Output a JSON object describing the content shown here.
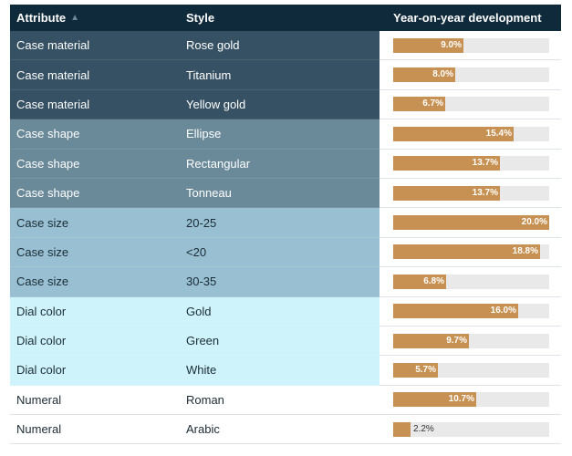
{
  "header": {
    "attribute_label": "Attribute",
    "sort_indicator": "▲",
    "style_label": "Style",
    "yoy_label": "Year-on-year development"
  },
  "colors": {
    "header_bg": "#0f2a3b",
    "bar_fill": "#c69152",
    "bar_track": "#e9e9e9",
    "group_case_material": "#355163",
    "group_case_shape": "#6a8a9a",
    "group_case_size": "#98c0d2",
    "group_dial_color": "#cff3fb",
    "group_numeral": "#ffffff"
  },
  "rows": [
    {
      "attribute": "Case material",
      "style": "Rose gold",
      "value": 9.0,
      "label": "9.0%",
      "group": "g-material"
    },
    {
      "attribute": "Case material",
      "style": "Titanium",
      "value": 8.0,
      "label": "8.0%",
      "group": "g-material"
    },
    {
      "attribute": "Case material",
      "style": "Yellow gold",
      "value": 6.7,
      "label": "6.7%",
      "group": "g-material"
    },
    {
      "attribute": "Case shape",
      "style": "Ellipse",
      "value": 15.4,
      "label": "15.4%",
      "group": "g-shape"
    },
    {
      "attribute": "Case shape",
      "style": "Rectangular",
      "value": 13.7,
      "label": "13.7%",
      "group": "g-shape"
    },
    {
      "attribute": "Case shape",
      "style": "Tonneau",
      "value": 13.7,
      "label": "13.7%",
      "group": "g-shape"
    },
    {
      "attribute": "Case size",
      "style": "20-25",
      "value": 20.0,
      "label": "20.0%",
      "group": "g-size"
    },
    {
      "attribute": "Case size",
      "style": "<20",
      "value": 18.8,
      "label": "18.8%",
      "group": "g-size"
    },
    {
      "attribute": "Case size",
      "style": "30-35",
      "value": 6.8,
      "label": "6.8%",
      "group": "g-size"
    },
    {
      "attribute": "Dial color",
      "style": "Gold",
      "value": 16.0,
      "label": "16.0%",
      "group": "g-dial"
    },
    {
      "attribute": "Dial color",
      "style": "Green",
      "value": 9.7,
      "label": "9.7%",
      "group": "g-dial"
    },
    {
      "attribute": "Dial color",
      "style": "White",
      "value": 5.7,
      "label": "5.7%",
      "group": "g-dial"
    },
    {
      "attribute": "Numeral",
      "style": "Roman",
      "value": 10.7,
      "label": "10.7%",
      "group": "g-numeral"
    },
    {
      "attribute": "Numeral",
      "style": "Arabic",
      "value": 2.2,
      "label": "2.2%",
      "group": "g-numeral"
    }
  ],
  "bar_max": 20.0
}
